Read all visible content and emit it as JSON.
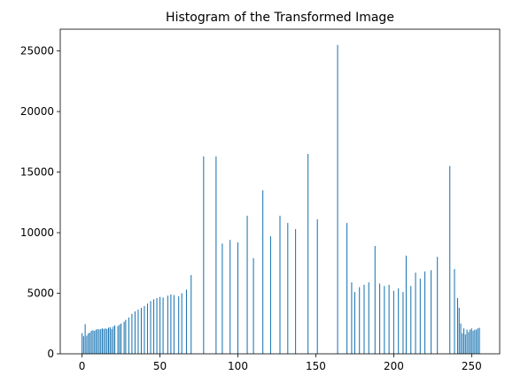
{
  "chart_data": {
    "type": "bar",
    "title": "Histogram of the Transformed Image",
    "xlabel": "",
    "ylabel": "",
    "xlim": [
      -14,
      268
    ],
    "ylim": [
      0,
      26800
    ],
    "x_ticks": [
      0,
      50,
      100,
      150,
      200,
      250
    ],
    "y_ticks": [
      0,
      5000,
      10000,
      15000,
      20000,
      25000
    ],
    "grid": false,
    "bar_color": "#1f77b4",
    "bar_width": 0.6,
    "bars": [
      {
        "x": 0,
        "y": 1700
      },
      {
        "x": 1,
        "y": 1450
      },
      {
        "x": 2,
        "y": 2450
      },
      {
        "x": 3,
        "y": 1500
      },
      {
        "x": 4,
        "y": 1700
      },
      {
        "x": 5,
        "y": 1750
      },
      {
        "x": 6,
        "y": 1900
      },
      {
        "x": 7,
        "y": 1950
      },
      {
        "x": 8,
        "y": 1900
      },
      {
        "x": 9,
        "y": 2000
      },
      {
        "x": 10,
        "y": 2050
      },
      {
        "x": 11,
        "y": 2000
      },
      {
        "x": 12,
        "y": 2050
      },
      {
        "x": 13,
        "y": 2100
      },
      {
        "x": 14,
        "y": 2050
      },
      {
        "x": 15,
        "y": 2100
      },
      {
        "x": 16,
        "y": 2050
      },
      {
        "x": 17,
        "y": 2150
      },
      {
        "x": 18,
        "y": 2200
      },
      {
        "x": 19,
        "y": 2050
      },
      {
        "x": 20,
        "y": 2250
      },
      {
        "x": 21,
        "y": 2350
      },
      {
        "x": 23,
        "y": 2300
      },
      {
        "x": 24,
        "y": 2400
      },
      {
        "x": 25,
        "y": 2500
      },
      {
        "x": 27,
        "y": 2650
      },
      {
        "x": 28,
        "y": 2800
      },
      {
        "x": 30,
        "y": 3000
      },
      {
        "x": 32,
        "y": 3300
      },
      {
        "x": 34,
        "y": 3500
      },
      {
        "x": 36,
        "y": 3650
      },
      {
        "x": 38,
        "y": 3800
      },
      {
        "x": 40,
        "y": 3950
      },
      {
        "x": 42,
        "y": 4150
      },
      {
        "x": 44,
        "y": 4350
      },
      {
        "x": 46,
        "y": 4500
      },
      {
        "x": 48,
        "y": 4600
      },
      {
        "x": 50,
        "y": 4700
      },
      {
        "x": 52,
        "y": 4650
      },
      {
        "x": 55,
        "y": 4800
      },
      {
        "x": 57,
        "y": 4900
      },
      {
        "x": 59,
        "y": 4850
      },
      {
        "x": 62,
        "y": 4750
      },
      {
        "x": 64,
        "y": 5000
      },
      {
        "x": 67,
        "y": 5300
      },
      {
        "x": 70,
        "y": 6500
      },
      {
        "x": 78,
        "y": 16300
      },
      {
        "x": 86,
        "y": 16300
      },
      {
        "x": 90,
        "y": 9100
      },
      {
        "x": 95,
        "y": 9400
      },
      {
        "x": 100,
        "y": 9200
      },
      {
        "x": 106,
        "y": 11400
      },
      {
        "x": 110,
        "y": 7900
      },
      {
        "x": 116,
        "y": 13500
      },
      {
        "x": 121,
        "y": 9700
      },
      {
        "x": 127,
        "y": 11400
      },
      {
        "x": 132,
        "y": 10800
      },
      {
        "x": 137,
        "y": 10300
      },
      {
        "x": 145,
        "y": 16500
      },
      {
        "x": 151,
        "y": 11100
      },
      {
        "x": 164,
        "y": 25500
      },
      {
        "x": 170,
        "y": 10800
      },
      {
        "x": 173,
        "y": 5900
      },
      {
        "x": 175,
        "y": 5100
      },
      {
        "x": 178,
        "y": 5500
      },
      {
        "x": 181,
        "y": 5700
      },
      {
        "x": 184,
        "y": 5900
      },
      {
        "x": 188,
        "y": 8900
      },
      {
        "x": 191,
        "y": 5800
      },
      {
        "x": 194,
        "y": 5600
      },
      {
        "x": 197,
        "y": 5700
      },
      {
        "x": 200,
        "y": 5200
      },
      {
        "x": 203,
        "y": 5400
      },
      {
        "x": 206,
        "y": 5100
      },
      {
        "x": 208,
        "y": 8100
      },
      {
        "x": 211,
        "y": 5600
      },
      {
        "x": 214,
        "y": 6700
      },
      {
        "x": 217,
        "y": 6200
      },
      {
        "x": 220,
        "y": 6800
      },
      {
        "x": 224,
        "y": 6900
      },
      {
        "x": 228,
        "y": 8000
      },
      {
        "x": 236,
        "y": 15500
      },
      {
        "x": 239,
        "y": 7000
      },
      {
        "x": 241,
        "y": 4600
      },
      {
        "x": 242,
        "y": 3800
      },
      {
        "x": 243,
        "y": 2500
      },
      {
        "x": 244,
        "y": 1700
      },
      {
        "x": 245,
        "y": 2100
      },
      {
        "x": 246,
        "y": 1600
      },
      {
        "x": 247,
        "y": 2000
      },
      {
        "x": 248,
        "y": 1800
      },
      {
        "x": 249,
        "y": 2000
      },
      {
        "x": 250,
        "y": 2100
      },
      {
        "x": 251,
        "y": 1900
      },
      {
        "x": 252,
        "y": 2000
      },
      {
        "x": 253,
        "y": 2000
      },
      {
        "x": 254,
        "y": 2100
      },
      {
        "x": 255,
        "y": 2150
      }
    ]
  }
}
